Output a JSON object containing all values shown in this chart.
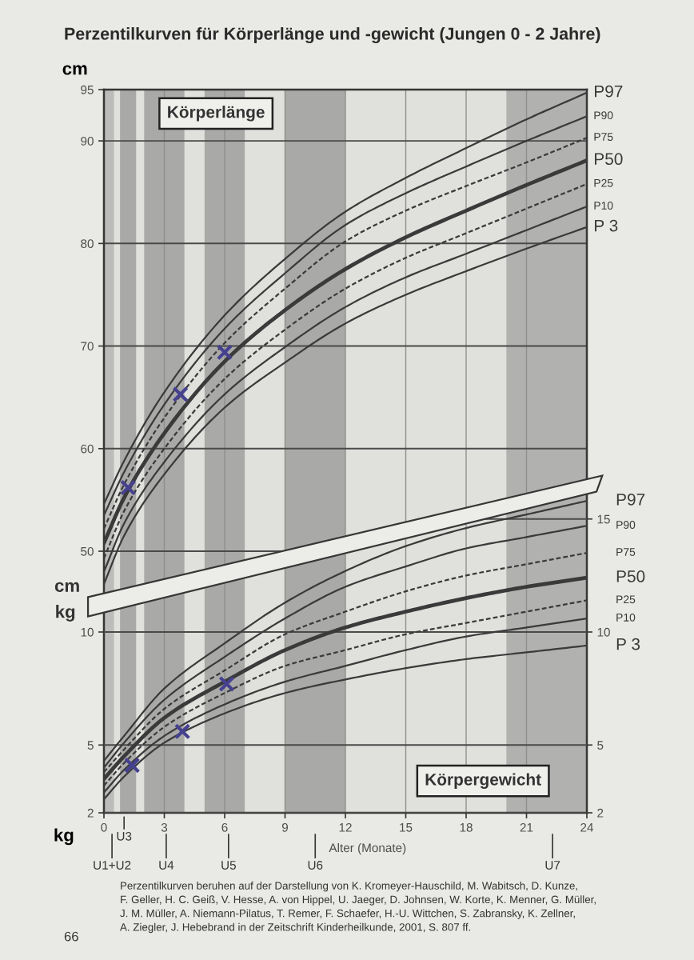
{
  "chart_data": {
    "type": "line",
    "title": "Perzentilkurven für Körperlänge und -gewicht (Jungen 0 - 2 Jahre)",
    "xlabel": "Alter (Monate)",
    "ylabel": "cm",
    "y3label": "kg",
    "x": [
      0,
      1,
      3,
      6,
      9,
      12,
      15,
      18,
      21,
      24
    ],
    "xlim": [
      0,
      24
    ],
    "xticks": [
      0,
      3,
      6,
      9,
      12,
      15,
      18,
      21,
      24
    ],
    "ylim": [
      24.5,
      95
    ],
    "yticks": [
      50,
      60,
      70,
      80,
      90,
      95
    ],
    "y2lim": [
      2,
      34
    ],
    "y2ticks": [
      2,
      5,
      10,
      15
    ],
    "y3lim": [
      2,
      34
    ],
    "y3ticks": [
      2,
      5,
      10
    ],
    "grid": true,
    "bands": [
      {
        "axis": "x",
        "from": 0,
        "to": 0.5,
        "color": "#bcbcba"
      },
      {
        "axis": "x",
        "from": 0.8,
        "to": 1.6,
        "color": "#a9a9a7"
      },
      {
        "axis": "x",
        "from": 2,
        "to": 4,
        "color": "#a9a9a7"
      },
      {
        "axis": "x",
        "from": 5,
        "to": 7,
        "color": "#a9a9a7"
      },
      {
        "axis": "x",
        "from": 9,
        "to": 12,
        "color": "#a9a9a7"
      },
      {
        "axis": "x",
        "from": 20,
        "to": 24,
        "color": "#b1b1af"
      }
    ],
    "series": [
      {
        "name": "P97",
        "axis": "y",
        "color": "#3a3a3a",
        "values": [
          54.6,
          58.8,
          65.5,
          73.0,
          78.5,
          83.1,
          86.4,
          89.3,
          92.1,
          94.7
        ]
      },
      {
        "name": "P90",
        "axis": "y",
        "color": "#3a3a3a",
        "values": [
          53.5,
          57.7,
          64.3,
          71.7,
          77.1,
          81.8,
          84.9,
          87.5,
          90.0,
          92.4
        ]
      },
      {
        "name": "P75",
        "axis": "y",
        "color": "#3a3a3a",
        "line_style": "dashed",
        "values": [
          52.2,
          56.5,
          63.0,
          70.3,
          75.6,
          80.2,
          83.2,
          85.6,
          87.9,
          90.3
        ]
      },
      {
        "name": "P50",
        "axis": "y",
        "color": "#3a3a3a",
        "values": [
          50.8,
          55.2,
          61.5,
          68.5,
          73.5,
          77.5,
          80.6,
          83.2,
          85.7,
          88.1
        ]
      },
      {
        "name": "P25",
        "axis": "y",
        "color": "#3a3a3a",
        "line_style": "dashed",
        "values": [
          49.3,
          53.9,
          60.0,
          66.8,
          71.6,
          75.6,
          78.6,
          81.0,
          83.4,
          85.8
        ]
      },
      {
        "name": "P10",
        "axis": "y",
        "color": "#3a3a3a",
        "values": [
          48.0,
          52.7,
          58.7,
          65.3,
          69.9,
          73.8,
          76.7,
          79.0,
          81.3,
          83.6
        ]
      },
      {
        "name": "P 3",
        "axis": "y",
        "color": "#3a3a3a",
        "values": [
          46.8,
          51.5,
          57.5,
          64.0,
          68.4,
          72.2,
          75.0,
          77.3,
          79.5,
          81.6
        ]
      },
      {
        "name": "P97",
        "axis": "y2",
        "color": "#3a3a3a",
        "values": [
          4.3,
          5.4,
          7.5,
          9.5,
          11.3,
          12.7,
          13.8,
          14.6,
          15.2,
          15.8
        ]
      },
      {
        "name": "P90",
        "axis": "y2",
        "color": "#3a3a3a",
        "values": [
          4.0,
          5.1,
          7.0,
          8.9,
          10.6,
          12.0,
          12.9,
          13.7,
          14.2,
          14.7
        ]
      },
      {
        "name": "P75",
        "axis": "y2",
        "color": "#3a3a3a",
        "line_style": "dashed",
        "values": [
          3.8,
          4.8,
          6.6,
          8.3,
          9.9,
          10.9,
          11.8,
          12.5,
          13.0,
          13.5
        ]
      },
      {
        "name": "P50",
        "axis": "y2",
        "color": "#3a3a3a",
        "values": [
          3.5,
          4.5,
          6.2,
          7.8,
          9.2,
          10.2,
          10.9,
          11.5,
          12.0,
          12.4
        ]
      },
      {
        "name": "P25",
        "axis": "y2",
        "color": "#3a3a3a",
        "line_style": "dashed",
        "values": [
          3.2,
          4.2,
          5.8,
          7.3,
          8.5,
          9.2,
          9.9,
          10.4,
          10.9,
          11.4
        ]
      },
      {
        "name": "P10",
        "axis": "y2",
        "color": "#3a3a3a",
        "values": [
          2.9,
          3.9,
          5.4,
          6.8,
          7.8,
          8.5,
          9.2,
          9.8,
          10.2,
          10.6
        ]
      },
      {
        "name": "P 3",
        "axis": "y2",
        "color": "#3a3a3a",
        "values": [
          2.6,
          3.6,
          5.1,
          6.4,
          7.3,
          7.9,
          8.4,
          8.8,
          9.1,
          9.4
        ]
      },
      {
        "type": "scatter",
        "axis": "y",
        "marker": "cross",
        "color": "#46418f",
        "x": [
          1.2,
          3.8,
          6.0
        ],
        "values": [
          56.2,
          65.3,
          69.4
        ]
      },
      {
        "type": "scatter",
        "axis": "y2",
        "marker": "cross",
        "color": "#46418f",
        "x": [
          1.4,
          3.9,
          6.1
        ],
        "values": [
          4.1,
          5.6,
          7.7
        ]
      }
    ],
    "annotations": [
      "Körperlänge",
      "Körpergewicht",
      "cm",
      "kg",
      "U1+U2",
      "U3",
      "U4",
      "U5",
      "U6",
      "U7",
      "Perzentilkurven beruhen auf der Darstellung von K. Kromeyer-Hauschild, M. Wabitsch, D. Kunze,\nF. Geller, H. C. Geiß, V. Hesse, A. von Hippel, U. Jaeger, D. Johnsen, W. Korte, K. Menner, G. Müller,\nJ. M. Müller, A. Niemann-Pilatus, T. Remer, F. Schaefer, H.-U. Wittchen, S. Zabransky, K. Zellner,\nA. Ziegler, J. Hebebrand in der Zeitschrift Kinderheilkunde, 2001, S. 807 ff.",
      "66"
    ]
  }
}
